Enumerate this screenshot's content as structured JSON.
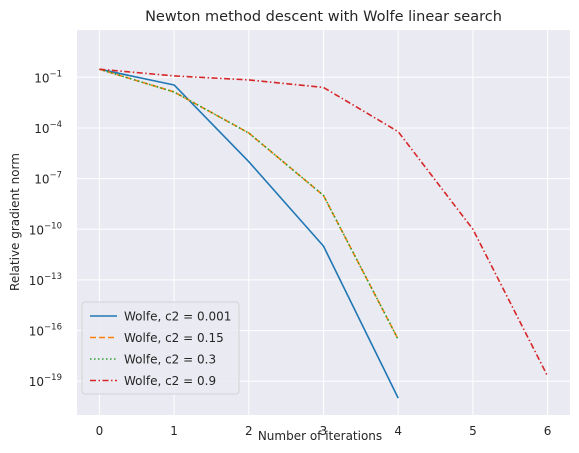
{
  "chart_data": {
    "type": "line",
    "title": "Newton method descent with Wolfe linear search",
    "xlabel": "Number of iterations",
    "ylabel": "Relative gradient norm",
    "x_ticks": [
      0,
      1,
      2,
      3,
      4,
      5,
      6
    ],
    "xlim": [
      -0.3,
      6.3
    ],
    "yscale": "log",
    "ylim_log10": [
      -21,
      1.8
    ],
    "y_ticks": [
      {
        "exp": -1,
        "base": "10",
        "sup": "−1"
      },
      {
        "exp": -4,
        "base": "10",
        "sup": "−4"
      },
      {
        "exp": -7,
        "base": "10",
        "sup": "−7"
      },
      {
        "exp": -10,
        "base": "10",
        "sup": "−10"
      },
      {
        "exp": -13,
        "base": "10",
        "sup": "−13"
      },
      {
        "exp": -16,
        "base": "10",
        "sup": "−16"
      },
      {
        "exp": -19,
        "base": "10",
        "sup": "−19"
      }
    ],
    "grid": true,
    "legend_position": "lower-left",
    "series": [
      {
        "name": "Wolfe, c2 = 0.001",
        "color": "#1f77b4",
        "dash": "solid",
        "x": [
          0,
          1,
          2,
          3,
          4
        ],
        "y": [
          0.3,
          0.035,
          1e-06,
          1e-11,
          1e-20
        ]
      },
      {
        "name": "Wolfe, c2 = 0.15",
        "color": "#ff7f0e",
        "dash": "dashed",
        "x": [
          0,
          1,
          2,
          3,
          4
        ],
        "y": [
          0.3,
          0.0135,
          5e-05,
          1e-08,
          3e-17
        ]
      },
      {
        "name": "Wolfe, c2 = 0.3",
        "color": "#2ca02c",
        "dash": "dotted",
        "x": [
          0,
          1,
          2,
          3,
          4
        ],
        "y": [
          0.3,
          0.0135,
          5e-05,
          1e-08,
          3e-17
        ]
      },
      {
        "name": "Wolfe, c2 = 0.9",
        "color": "#d62728",
        "dash": "dashdot",
        "x": [
          0,
          1,
          2,
          3,
          4,
          5,
          6
        ],
        "y": [
          0.3,
          0.12,
          0.07,
          0.025,
          6e-05,
          1e-10,
          2e-19
        ]
      }
    ]
  }
}
